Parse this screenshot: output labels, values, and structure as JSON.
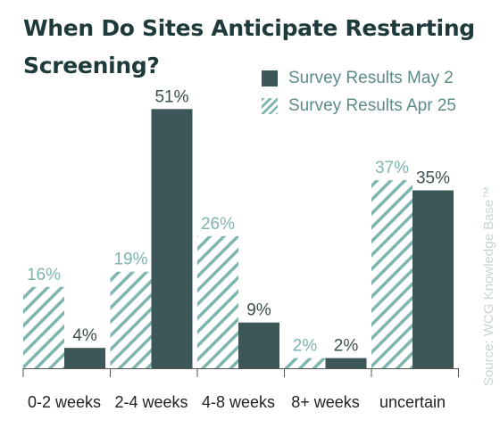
{
  "title_lines": [
    "When Do Sites Anticipate Restarting",
    "Screening?"
  ],
  "source": "Source: WCG Knowledge Base™",
  "colors": {
    "title": "#1f3a3a",
    "solid": "#3d5758",
    "hatch": "#7fb5b0",
    "label_light": "#7fb5b0",
    "label_dark": "#3d4f50",
    "axis": "#555555",
    "source": "#c9d3d3"
  },
  "chart_data": {
    "type": "bar",
    "title": "When Do Sites Anticipate Restarting Screening?",
    "categories": [
      "0-2 weeks",
      "2-4 weeks",
      "4-8 weeks",
      "8+ weeks",
      "uncertain"
    ],
    "series": [
      {
        "name": "Survey Results Apr 25",
        "style": "hatched",
        "values": [
          16,
          19,
          26,
          2,
          37
        ],
        "labels": [
          "16%",
          "19%",
          "26%",
          "2%",
          "37%"
        ]
      },
      {
        "name": "Survey Results May 2",
        "style": "solid",
        "values": [
          4,
          51,
          9,
          2,
          35
        ],
        "labels": [
          "4%",
          "51%",
          "9%",
          "2%",
          "35%"
        ]
      }
    ],
    "legend_order": [
      "Survey Results May 2",
      "Survey Results Apr 25"
    ],
    "legend_position": "top-right",
    "ylim": [
      0,
      51
    ],
    "grid": false,
    "y_axis_visible": false
  }
}
